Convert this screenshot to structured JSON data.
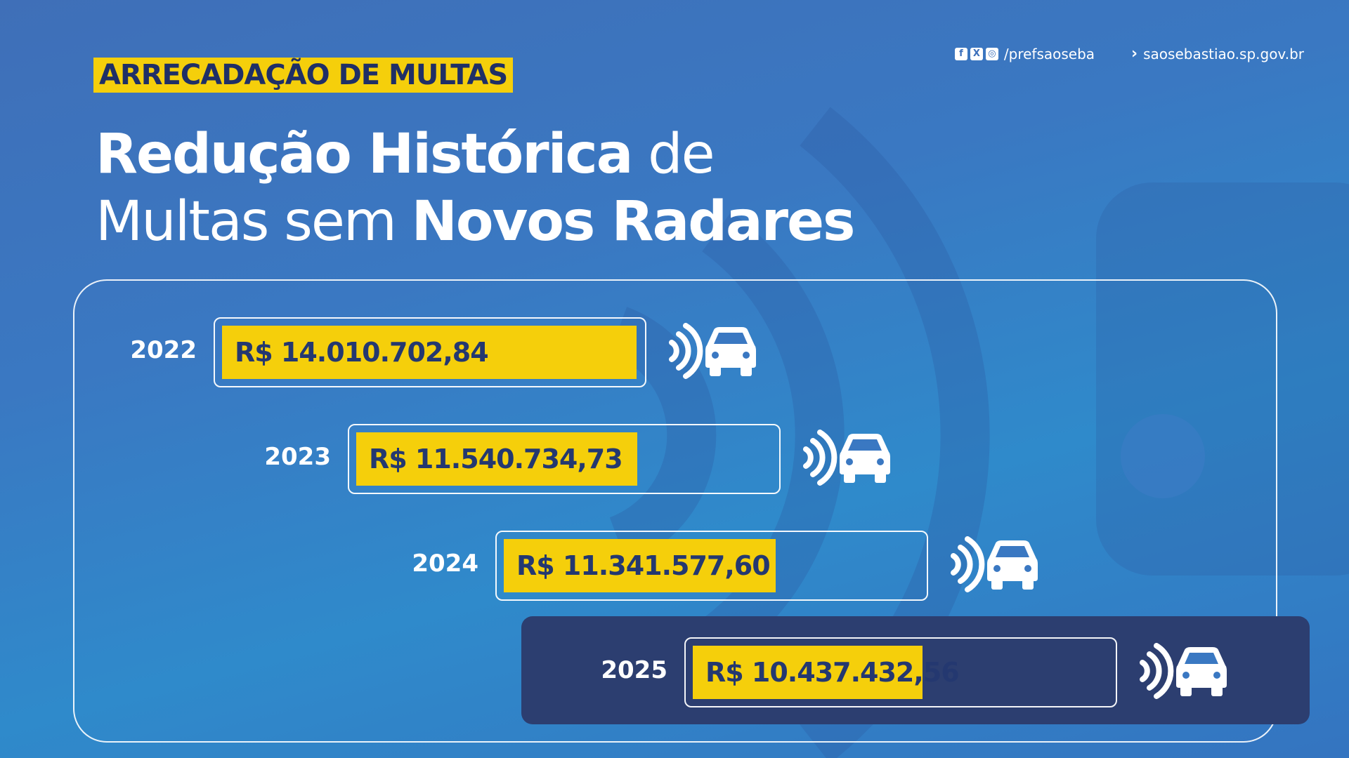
{
  "header": {
    "tag": "ARRECADAÇÃO DE MULTAS",
    "title_bold_1": "Redução Histórica",
    "title_light_1": "de",
    "title_light_2": "Multas sem",
    "title_bold_2": "Novos Radares"
  },
  "social": {
    "icons": [
      "facebook-icon",
      "x-icon",
      "instagram-icon"
    ],
    "handle": "/prefsaoseba",
    "site": "saosebastiao.sp.gov.br"
  },
  "colors": {
    "accent_yellow": "#f5cf0b",
    "dark_navy": "#2c3e70",
    "background_blue": "#3a78c2"
  },
  "chart_data": {
    "type": "bar",
    "orientation": "horizontal",
    "categories": [
      "2022",
      "2023",
      "2024",
      "2025"
    ],
    "values": [
      14010702.84,
      11540734.73,
      11341577.6,
      10437432.56
    ],
    "value_labels": [
      "R$ 14.010.702,84",
      "R$ 11.540.734,73",
      "R$ 11.341.577,60",
      "R$ 10.437.432,56"
    ],
    "highlighted": "2025"
  }
}
